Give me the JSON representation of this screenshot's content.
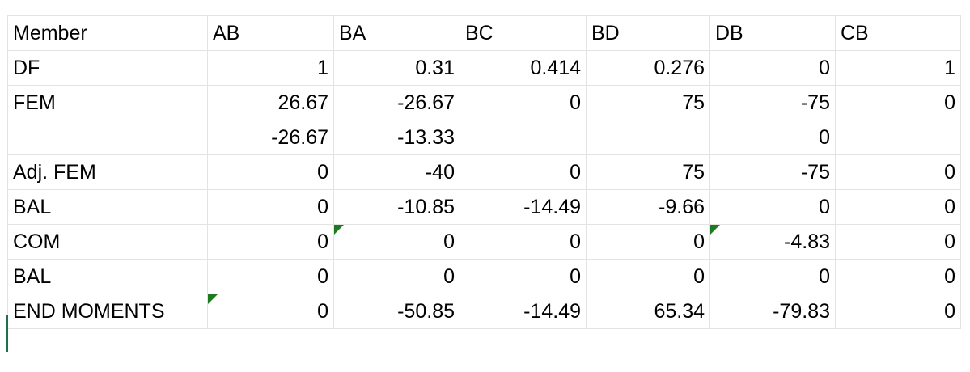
{
  "header": [
    "Member",
    "AB",
    "BA",
    "BC",
    "BD",
    "DB",
    "CB"
  ],
  "rows": [
    {
      "label": "DF",
      "values": [
        "1",
        "0.31",
        "0.414",
        "0.276",
        "0",
        "1"
      ],
      "notes": []
    },
    {
      "label": "FEM",
      "values": [
        "26.67",
        "-26.67",
        "0",
        "75",
        "-75",
        "0"
      ],
      "notes": []
    },
    {
      "label": "",
      "values": [
        "-26.67",
        "-13.33",
        "",
        "",
        "0",
        ""
      ],
      "notes": []
    },
    {
      "label": "Adj. FEM",
      "values": [
        "0",
        "-40",
        "0",
        "75",
        "-75",
        "0"
      ],
      "notes": []
    },
    {
      "label": "BAL",
      "values": [
        "0",
        "-10.85",
        "-14.49",
        "-9.66",
        "0",
        "0"
      ],
      "notes": []
    },
    {
      "label": "COM",
      "values": [
        "0",
        "0",
        "0",
        "0",
        "-4.83",
        "0"
      ],
      "notes": [
        2,
        5
      ]
    },
    {
      "label": "BAL",
      "values": [
        "0",
        "0",
        "0",
        "0",
        "0",
        "0"
      ],
      "notes": []
    },
    {
      "label": "END MOMENTS",
      "values": [
        "0",
        "-50.85",
        "-14.49",
        "65.34",
        "-79.83",
        "0"
      ],
      "notes": [
        1
      ]
    }
  ],
  "colors": {
    "gridline": "#e3e3e3",
    "text": "#000000",
    "note_indicator": "#1e7a1e",
    "selection": "#1e7145"
  }
}
